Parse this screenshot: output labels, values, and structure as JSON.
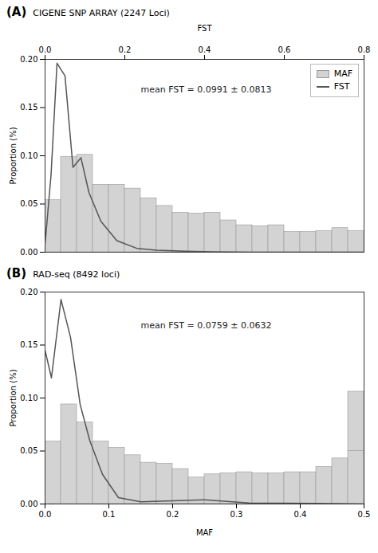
{
  "chart_data": [
    {
      "type": "bar",
      "title": "(A)",
      "subtitle": "CIGENE SNP ARRAY (2247 Loci)",
      "annotation": "mean FST = 0.0991 ± 0.0813",
      "ylabel": "Proportion (%)",
      "xlim": [
        0.0,
        0.5
      ],
      "x2label": "FST",
      "x2lim": [
        0.0,
        0.8
      ],
      "x2ticks": [
        {
          "value": 0.0,
          "label": "0.0"
        },
        0.2,
        0.4,
        0.6,
        0.8
      ],
      "ylim": [
        0.0,
        0.2
      ],
      "yticks": [
        {
          "value": 0.0,
          "label": "0.00"
        },
        0.05,
        {
          "value": 0.1,
          "label": "0.10"
        },
        0.15,
        {
          "value": 0.2,
          "label": "0.20"
        }
      ],
      "legend": "upper right",
      "series": [
        {
          "name": "MAF",
          "type": "bar",
          "color": "#d3d3d3",
          "x": [
            0.0125,
            0.0375,
            0.0625,
            0.0875,
            0.1125,
            0.1375,
            0.1625,
            0.1875,
            0.2125,
            0.2375,
            0.2625,
            0.2875,
            0.3125,
            0.3375,
            0.3625,
            0.3875,
            0.4125,
            0.4375,
            0.4625,
            0.4875
          ],
          "values": [
            0.054,
            0.099,
            0.101,
            0.07,
            0.07,
            0.066,
            0.056,
            0.048,
            0.041,
            0.04,
            0.041,
            0.033,
            0.028,
            0.027,
            0.028,
            0.021,
            0.021,
            0.022,
            0.025,
            0.022
          ]
        },
        {
          "name": "FST",
          "type": "line",
          "color": "#555555",
          "axis": "x2",
          "x": [
            0.0,
            0.015,
            0.03,
            0.05,
            0.07,
            0.09,
            0.11,
            0.14,
            0.18,
            0.23,
            0.28,
            0.35,
            0.42,
            0.52,
            0.62,
            0.72,
            0.8
          ],
          "values": [
            0.008,
            0.08,
            0.196,
            0.183,
            0.088,
            0.098,
            0.062,
            0.032,
            0.012,
            0.004,
            0.002,
            0.001,
            0.0005,
            0.0,
            0.0,
            0.0,
            0.0
          ]
        }
      ]
    },
    {
      "type": "bar",
      "title": "(B)",
      "subtitle": "RAD-seq (8492 loci)",
      "annotation": "mean FST = 0.0759 ± 0.0632",
      "xlabel": "MAF",
      "ylabel": "Proportion (%)",
      "xlim": [
        0.0,
        0.5
      ],
      "xticks": [
        {
          "value": 0.0,
          "label": "0.0"
        },
        0.1,
        0.2,
        0.3,
        0.4,
        0.5
      ],
      "ylim": [
        0.0,
        0.2
      ],
      "yticks": [
        {
          "value": 0.0,
          "label": "0.00"
        },
        0.05,
        {
          "value": 0.1,
          "label": "0.10"
        },
        0.15,
        {
          "value": 0.2,
          "label": "0.20"
        }
      ],
      "series": [
        {
          "name": "MAF",
          "type": "bar",
          "color": "#d3d3d3",
          "x": [
            0.0125,
            0.0375,
            0.0625,
            0.0875,
            0.1125,
            0.1375,
            0.1625,
            0.1875,
            0.2125,
            0.2375,
            0.2625,
            0.2875,
            0.3125,
            0.3375,
            0.3625,
            0.3875,
            0.4125,
            0.4375,
            0.4625,
            0.4875,
            0.4875
          ],
          "values": [
            0.059,
            0.094,
            0.077,
            0.059,
            0.053,
            0.046,
            0.039,
            0.038,
            0.033,
            0.025,
            0.028,
            0.029,
            0.03,
            0.029,
            0.029,
            0.03,
            0.03,
            0.035,
            0.043,
            0.05,
            0.056
          ]
        },
        {
          "name": "FST",
          "type": "line",
          "color": "#555555",
          "x": [
            0.0,
            0.01,
            0.025,
            0.04,
            0.055,
            0.07,
            0.09,
            0.115,
            0.15,
            0.2,
            0.25,
            0.32,
            0.42,
            0.5
          ],
          "values": [
            0.145,
            0.119,
            0.193,
            0.157,
            0.094,
            0.06,
            0.028,
            0.006,
            0.002,
            0.003,
            0.004,
            0.001,
            0.0005,
            0.0
          ]
        }
      ]
    }
  ]
}
